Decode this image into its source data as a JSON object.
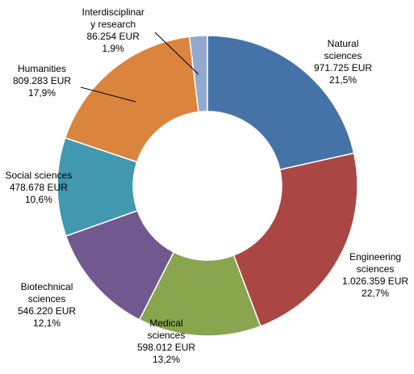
{
  "chart_data": {
    "type": "donut",
    "title": "",
    "slices": [
      {
        "name": "Natural sciences",
        "name_lines": [
          "Natural",
          "sciences"
        ],
        "amount": 971725,
        "amount_text": "971.725 EUR",
        "percent": 21.5,
        "percent_text": "21,5%",
        "color": "#4573A7"
      },
      {
        "name": "Engineering sciences",
        "name_lines": [
          "Engineering",
          "sciences"
        ],
        "amount": 1026359,
        "amount_text": "1.026.359 EUR",
        "percent": 22.7,
        "percent_text": "22,7%",
        "color": "#AA4643"
      },
      {
        "name": "Medical sciences",
        "name_lines": [
          "Medical",
          "sciences"
        ],
        "amount": 598012,
        "amount_text": "598.012 EUR",
        "percent": 13.2,
        "percent_text": "13,2%",
        "color": "#89A54E"
      },
      {
        "name": "Biotechnical sciences",
        "name_lines": [
          "Biotechnical",
          "sciences"
        ],
        "amount": 546220,
        "amount_text": "546.220 EUR",
        "percent": 12.1,
        "percent_text": "12,1%",
        "color": "#71588F"
      },
      {
        "name": "Social sciences",
        "name_lines": [
          "Social sciences"
        ],
        "amount": 478678,
        "amount_text": "478.678 EUR",
        "percent": 10.6,
        "percent_text": "10,6%",
        "color": "#4198AF"
      },
      {
        "name": "Humanities",
        "name_lines": [
          "Humanities"
        ],
        "amount": 809283,
        "amount_text": "809.283 EUR",
        "percent": 17.9,
        "percent_text": "17,9%",
        "color": "#DB843D"
      },
      {
        "name": "Interdisciplinary research",
        "name_lines": [
          "Interdisciplinar",
          "y research"
        ],
        "amount": 86254,
        "amount_text": "86.254 EUR",
        "percent": 1.9,
        "percent_text": "1,9%",
        "color": "#93A9CF"
      }
    ]
  }
}
